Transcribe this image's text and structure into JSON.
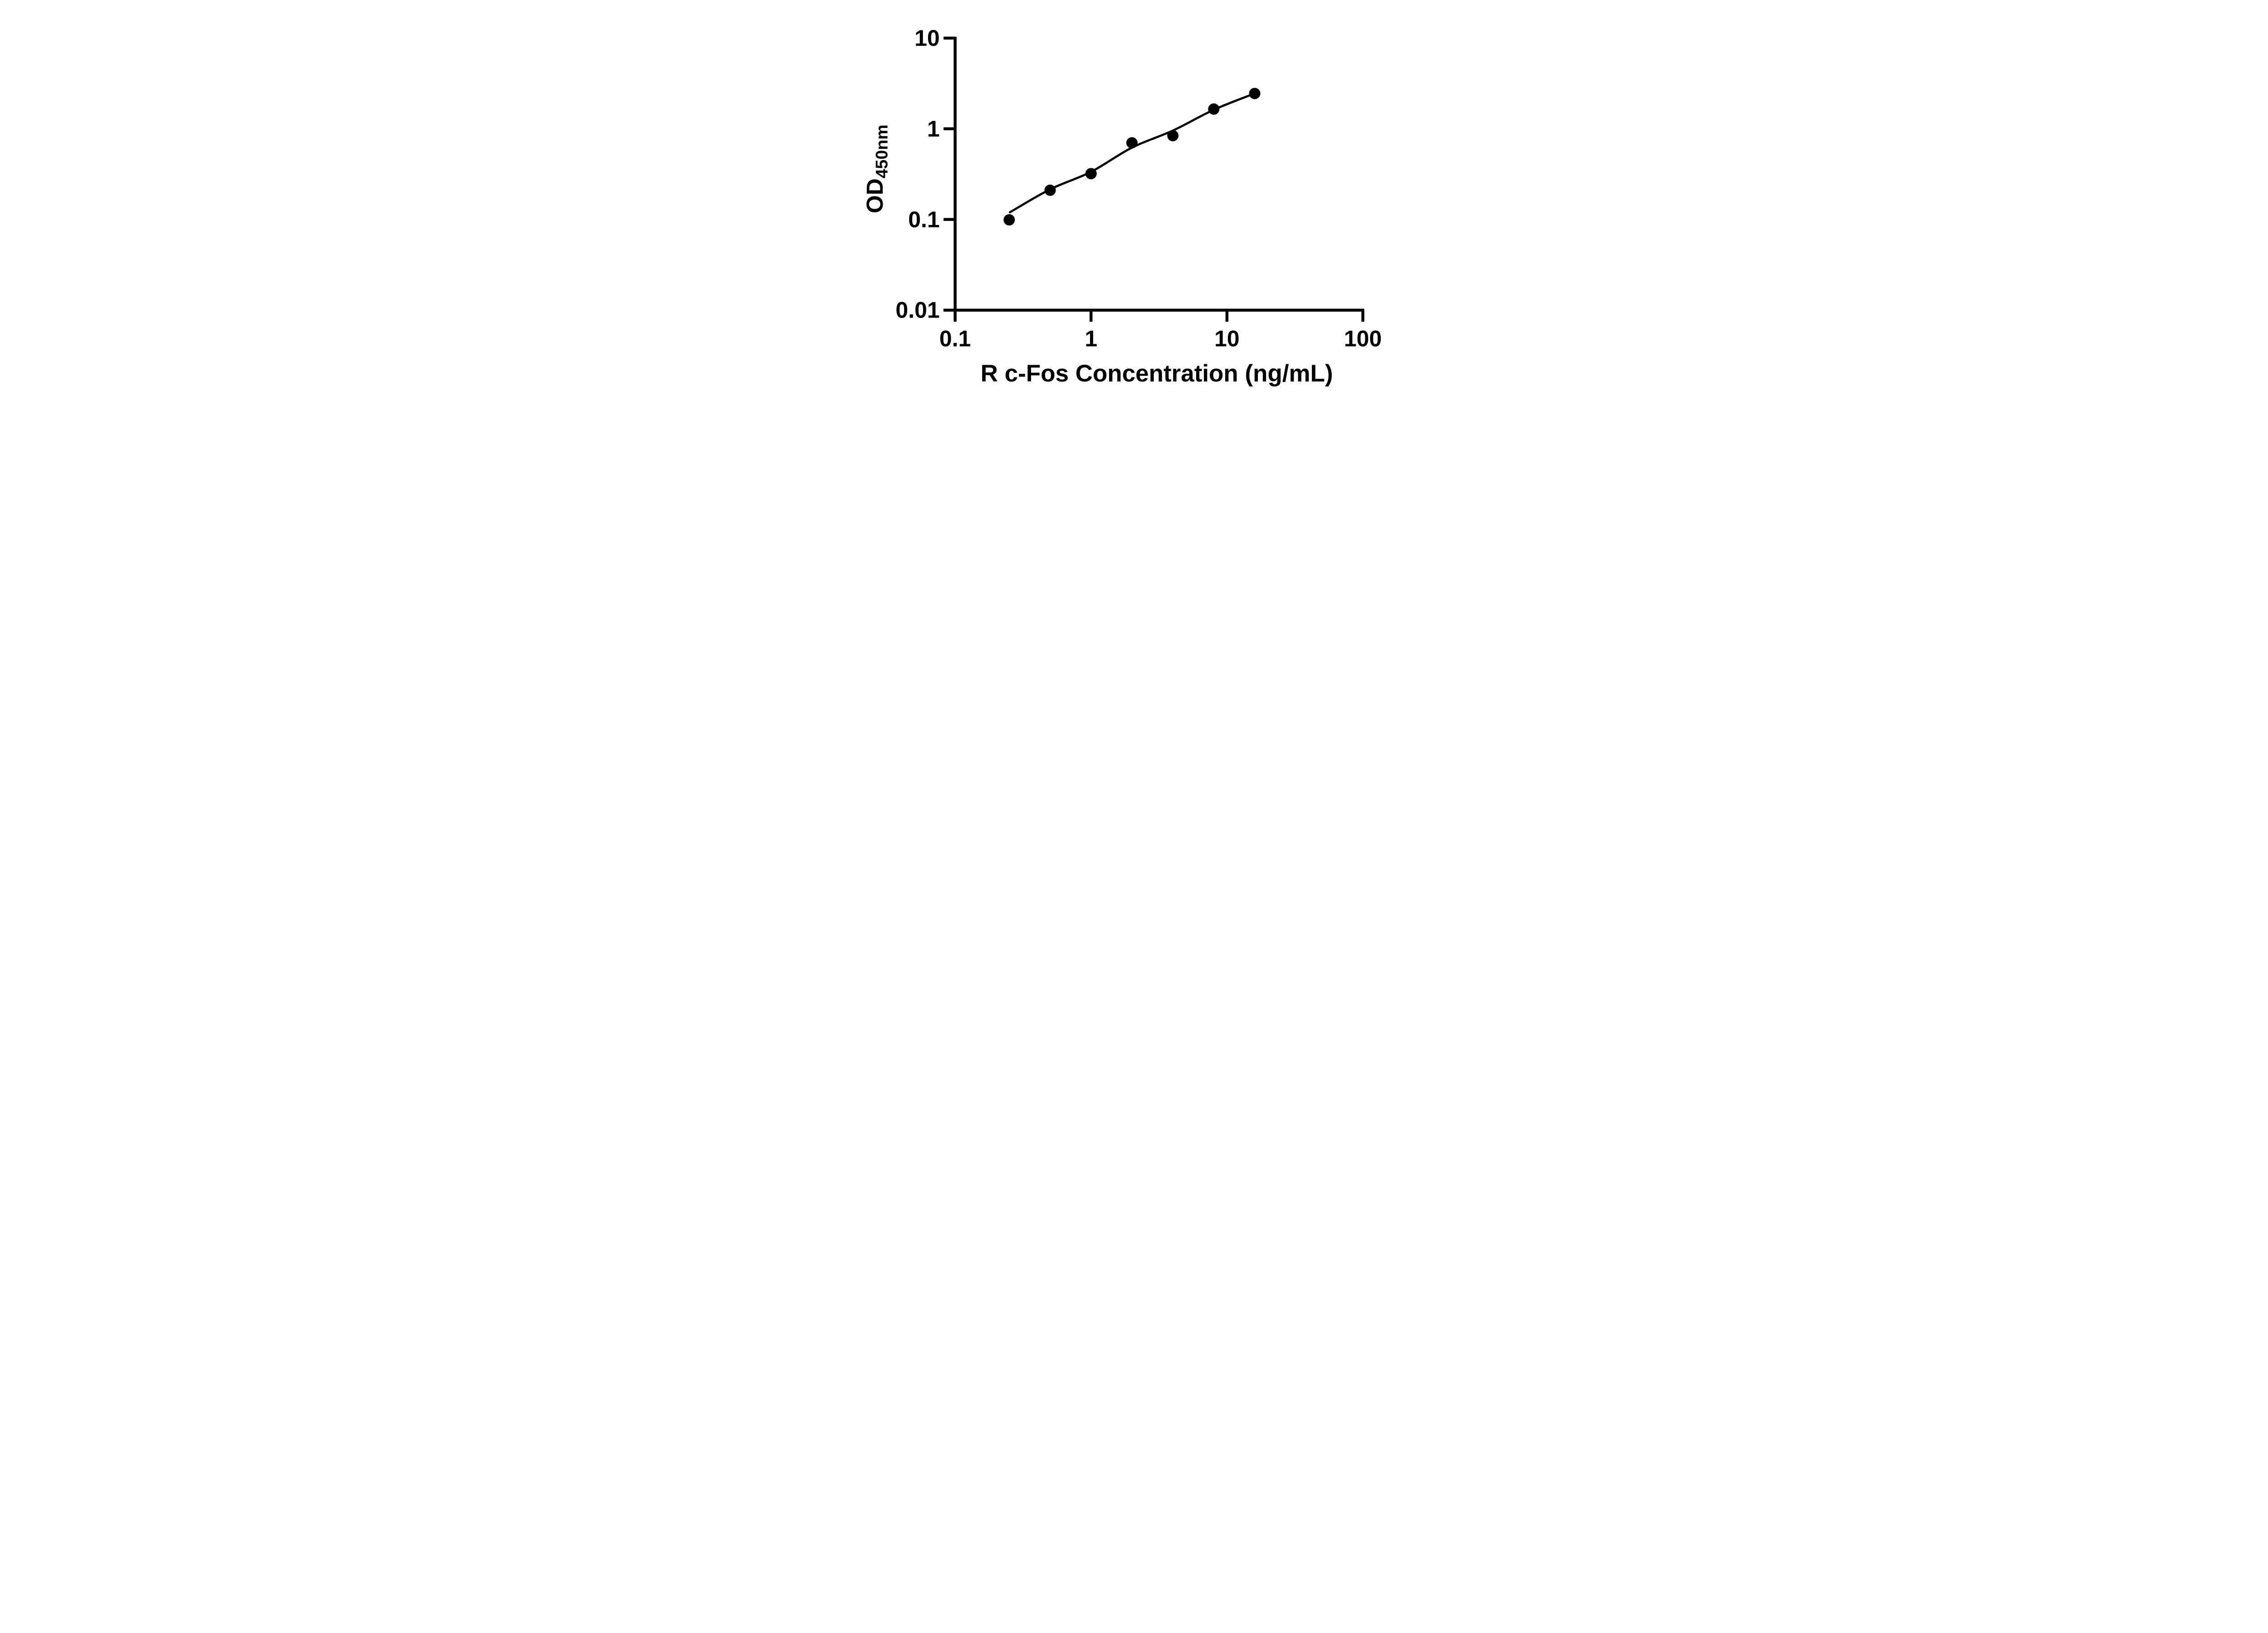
{
  "chart_data": {
    "type": "scatter",
    "title": "",
    "xlabel": "R c-Fos Concentration (ng/mL)",
    "ylabel": "OD",
    "ylabel_subscript": "450nm",
    "x_scale": "log",
    "y_scale": "log",
    "xlim": [
      0.1,
      100
    ],
    "ylim": [
      0.01,
      10
    ],
    "x_ticks": {
      "values": [
        0.1,
        1,
        10,
        100
      ],
      "labels": [
        "0.1",
        "1",
        "10",
        "100"
      ]
    },
    "y_ticks": {
      "values": [
        10,
        1,
        0.1,
        0.01
      ],
      "labels": [
        "10",
        "1",
        "0.1",
        "0.01"
      ]
    },
    "grid": false,
    "legend": null,
    "series": [
      {
        "name": "standard-points",
        "type": "scatter",
        "marker": "filled-circle",
        "color": "#000000",
        "x": [
          0.25,
          0.5,
          1,
          2,
          4,
          8,
          16
        ],
        "y": [
          0.099,
          0.21,
          0.32,
          0.7,
          0.84,
          1.65,
          2.45
        ]
      },
      {
        "name": "fit-line",
        "type": "line",
        "color": "#000000",
        "x": [
          0.253,
          0.5,
          1,
          2,
          4,
          8,
          16
        ],
        "y": [
          0.12,
          0.215,
          0.335,
          0.62,
          0.955,
          1.62,
          2.45
        ]
      }
    ]
  },
  "colors": {
    "background": "#ffffff",
    "foreground": "#000000"
  }
}
